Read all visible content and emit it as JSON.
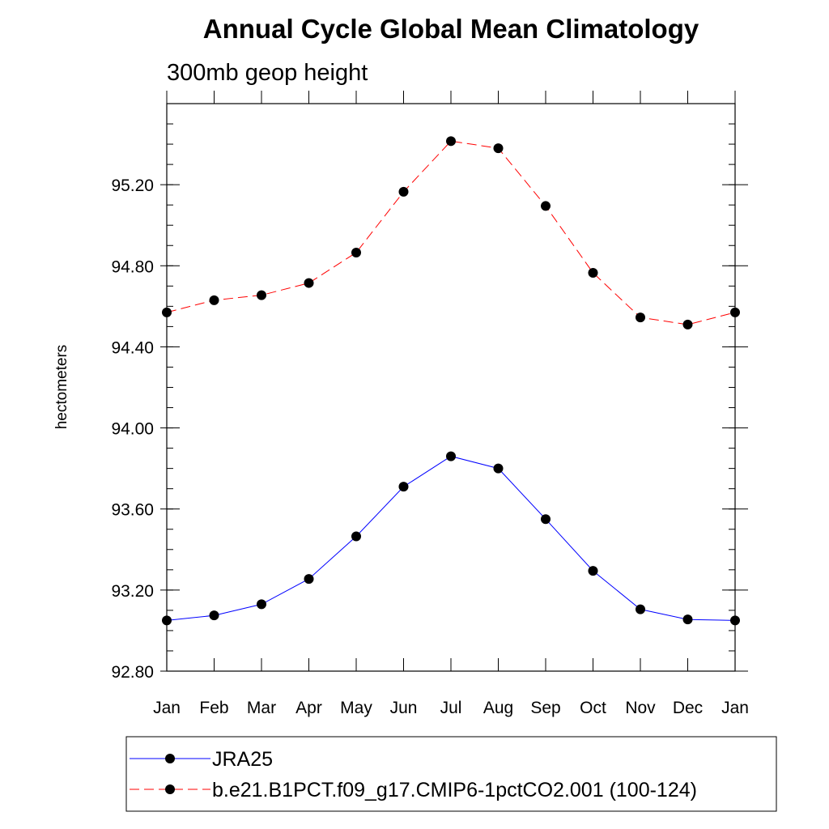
{
  "chart_data": {
    "type": "line",
    "title": "Annual Cycle Global Mean Climatology",
    "subtitle": "300mb geop height",
    "xlabel": "",
    "ylabel": "hectometers",
    "categories": [
      "Jan",
      "Feb",
      "Mar",
      "Apr",
      "May",
      "Jun",
      "Jul",
      "Aug",
      "Sep",
      "Oct",
      "Nov",
      "Dec",
      "Jan"
    ],
    "ylim": [
      92.8,
      95.6
    ],
    "yticks": [
      92.8,
      93.2,
      93.6,
      94.0,
      94.4,
      94.8,
      95.2
    ],
    "ytick_labels": [
      "92.80",
      "93.20",
      "93.60",
      "94.00",
      "94.40",
      "94.80",
      "95.20"
    ],
    "grid": false,
    "legend_position": "bottom",
    "series": [
      {
        "name": "JRA25",
        "color": "#0000ff",
        "style": "solid",
        "marker": "circle",
        "values": [
          93.05,
          93.075,
          93.13,
          93.255,
          93.465,
          93.71,
          93.86,
          93.8,
          93.55,
          93.295,
          93.105,
          93.055,
          93.05
        ]
      },
      {
        "name": "b.e21.B1PCT.f09_g17.CMIP6-1pctCO2.001 (100-124)",
        "color": "#ff0000",
        "style": "dashed",
        "marker": "circle",
        "values": [
          94.57,
          94.63,
          94.655,
          94.715,
          94.865,
          95.165,
          95.415,
          95.38,
          95.095,
          94.765,
          94.545,
          94.51,
          94.57
        ]
      }
    ]
  }
}
